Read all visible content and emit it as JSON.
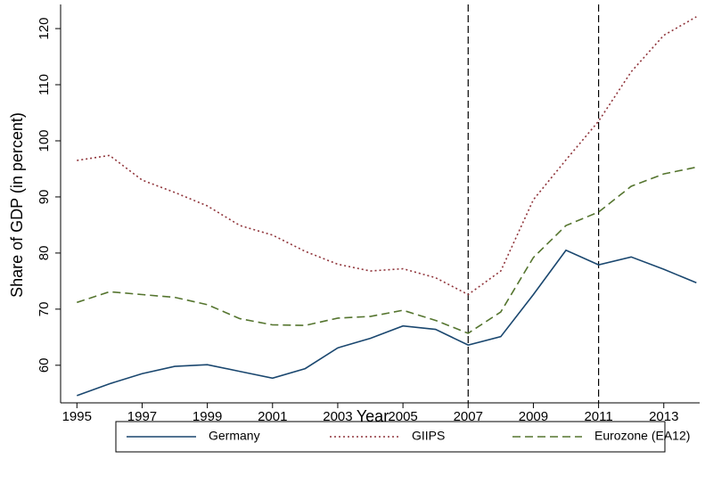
{
  "chart_data": {
    "type": "line",
    "x_label": "Year",
    "y_label": "Share of GDP (in percent)",
    "x": [
      1995,
      1996,
      1997,
      1998,
      1999,
      2000,
      2001,
      2002,
      2003,
      2004,
      2005,
      2006,
      2007,
      2008,
      2009,
      2010,
      2011,
      2012,
      2013,
      2014
    ],
    "series": [
      {
        "name": "Germany",
        "color": "#1a476f",
        "style": "solid",
        "values": [
          54.6,
          56.7,
          58.5,
          59.8,
          60.1,
          58.9,
          57.7,
          59.4,
          63.1,
          64.8,
          67.0,
          66.4,
          63.6,
          65.1,
          72.6,
          80.5,
          77.9,
          79.3,
          77.1,
          74.7
        ]
      },
      {
        "name": "GIIPS",
        "color": "#90353b",
        "style": "dot",
        "values": [
          96.5,
          97.4,
          93.0,
          90.8,
          88.4,
          84.9,
          83.2,
          80.3,
          78.0,
          76.8,
          77.2,
          75.6,
          72.6,
          76.8,
          89.5,
          96.6,
          103.5,
          112.3,
          118.8,
          122.1
        ]
      },
      {
        "name": "Eurozone (EA12)",
        "color": "#55752f",
        "style": "dash",
        "values": [
          71.2,
          73.1,
          72.6,
          72.1,
          70.8,
          68.3,
          67.2,
          67.1,
          68.4,
          68.7,
          69.8,
          68.0,
          65.7,
          69.5,
          79.2,
          84.9,
          87.3,
          91.9,
          94.1,
          95.3
        ]
      }
    ],
    "vlines": [
      2007,
      2011
    ],
    "xlim": [
      1994.5,
      2014.1
    ],
    "xticks": [
      1995,
      1997,
      1999,
      2001,
      2003,
      2005,
      2007,
      2009,
      2011,
      2013
    ],
    "ylim": [
      53.3,
      124.3
    ],
    "yticks": [
      60,
      70,
      80,
      90,
      100,
      110,
      120
    ],
    "legend": "bottom"
  }
}
